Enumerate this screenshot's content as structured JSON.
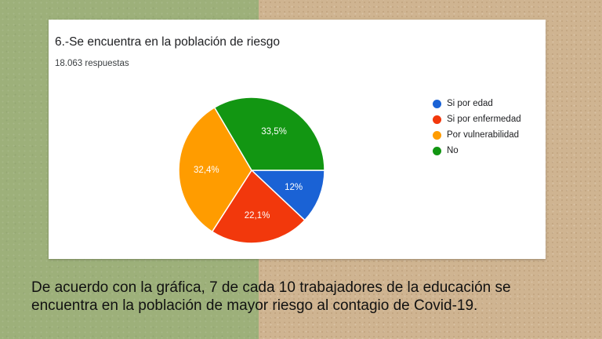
{
  "chart_data": {
    "type": "pie",
    "title": "6.-Se encuentra en la población de riesgo",
    "subtitle": "18.063 respuestas",
    "legend_position": "right",
    "slices": [
      {
        "label": "Si por edad",
        "value": 12,
        "display": "12%",
        "color": "#1a62d5"
      },
      {
        "label": "Si por enfermedad",
        "value": 22.1,
        "display": "22,1%",
        "color": "#f2380c"
      },
      {
        "label": "Por vulnerabilidad",
        "value": 32.4,
        "display": "32,4%",
        "color": "#ff9c00"
      },
      {
        "label": "No",
        "value": 33.5,
        "display": "33,5%",
        "color": "#129612"
      }
    ]
  },
  "caption": {
    "line1": "De acuerdo con la gráfica, 7 de cada 10 trabajadores de la educación se",
    "line2": "encuentra en la población de mayor riesgo al contagio de Covid-19."
  }
}
